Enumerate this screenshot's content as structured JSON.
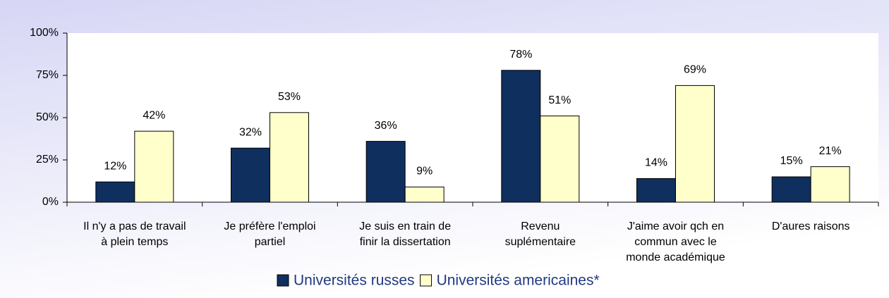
{
  "chart_data": {
    "type": "bar",
    "categories": [
      [
        "Il n'y a pas de travail",
        "à plein temps"
      ],
      [
        "Je préfère l'emploi",
        "partiel"
      ],
      [
        "Je suis en train de",
        "finir la dissertation"
      ],
      [
        "Revenu",
        "suplémentaire"
      ],
      [
        "J'aime avoir qch en",
        "commun avec le",
        "monde académique"
      ],
      [
        "D'aures raisons"
      ]
    ],
    "series": [
      {
        "name": "Universités russes",
        "color": "#0f2f5f",
        "values": [
          12,
          32,
          36,
          78,
          14,
          15
        ],
        "value_labels": [
          "12%",
          "32%",
          "36%",
          "78%",
          "14%",
          "15%"
        ]
      },
      {
        "name": "Universités americaines*",
        "color": "#ffffcc",
        "values": [
          42,
          53,
          9,
          51,
          69,
          21
        ],
        "value_labels": [
          "42%",
          "53%",
          "9%",
          "51%",
          "69%",
          "21%"
        ]
      }
    ],
    "ylim": [
      0,
      100
    ],
    "yticks": [
      {
        "value": 0,
        "label": "0%"
      },
      {
        "value": 25,
        "label": "25%"
      },
      {
        "value": 50,
        "label": "50%"
      },
      {
        "value": 75,
        "label": "75%"
      },
      {
        "value": 100,
        "label": "100%"
      }
    ],
    "legend": "bottom"
  }
}
